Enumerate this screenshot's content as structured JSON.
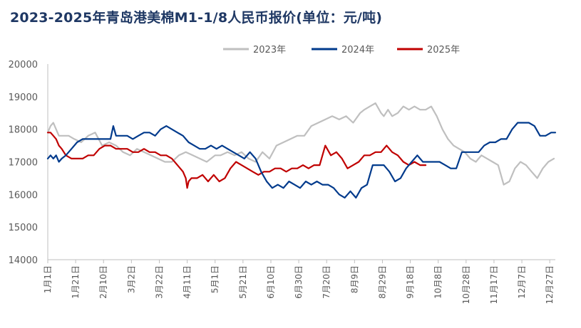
{
  "chart_data": {
    "type": "line",
    "title": "2023-2025年青岛港美棉M1-1/8人民币报价(单位：元/吨)",
    "xlabel": "",
    "ylabel": "",
    "ylim": [
      14000,
      20000
    ],
    "yticks": [
      14000,
      15000,
      16000,
      17000,
      18000,
      19000,
      20000
    ],
    "xlim": [
      1,
      365
    ],
    "xticks": [
      {
        "day": 1,
        "label": "1月1日"
      },
      {
        "day": 21,
        "label": "1月21日"
      },
      {
        "day": 41,
        "label": "2月10日"
      },
      {
        "day": 61,
        "label": "3月2日"
      },
      {
        "day": 81,
        "label": "3月22日"
      },
      {
        "day": 101,
        "label": "4月11日"
      },
      {
        "day": 121,
        "label": "5月1日"
      },
      {
        "day": 141,
        "label": "5月21日"
      },
      {
        "day": 161,
        "label": "6月10日"
      },
      {
        "day": 181,
        "label": "6月30日"
      },
      {
        "day": 201,
        "label": "7月20日"
      },
      {
        "day": 221,
        "label": "8月9日"
      },
      {
        "day": 241,
        "label": "8月29日"
      },
      {
        "day": 261,
        "label": "9月18日"
      },
      {
        "day": 281,
        "label": "10月8日"
      },
      {
        "day": 301,
        "label": "10月28日"
      },
      {
        "day": 321,
        "label": "11月17日"
      },
      {
        "day": 341,
        "label": "12月7日"
      },
      {
        "day": 361,
        "label": "12月27日"
      }
    ],
    "grid": false,
    "legend_position": "top",
    "series": [
      {
        "name": "2023年",
        "color": "#bfbfbf",
        "x": [
          1,
          3,
          5,
          7,
          9,
          12,
          16,
          20,
          25,
          30,
          35,
          40,
          45,
          50,
          55,
          60,
          65,
          70,
          75,
          80,
          85,
          90,
          95,
          100,
          105,
          110,
          115,
          118,
          121,
          125,
          130,
          135,
          140,
          145,
          150,
          155,
          160,
          165,
          170,
          175,
          180,
          185,
          190,
          195,
          200,
          205,
          210,
          215,
          220,
          225,
          228,
          232,
          236,
          240,
          242,
          245,
          248,
          252,
          256,
          260,
          264,
          268,
          272,
          276,
          280,
          284,
          288,
          292,
          296,
          300,
          304,
          308,
          312,
          316,
          320,
          324,
          328,
          332,
          336,
          340,
          344,
          348,
          352,
          356,
          360,
          364
        ],
        "y": [
          17900,
          18100,
          18200,
          18000,
          17800,
          17800,
          17800,
          17700,
          17600,
          17800,
          17900,
          17500,
          17600,
          17500,
          17300,
          17200,
          17400,
          17300,
          17200,
          17100,
          17000,
          17000,
          17200,
          17300,
          17200,
          17100,
          17000,
          17100,
          17200,
          17200,
          17300,
          17200,
          17300,
          17100,
          17000,
          17300,
          17100,
          17500,
          17600,
          17700,
          17800,
          17800,
          18100,
          18200,
          18300,
          18400,
          18300,
          18400,
          18200,
          18500,
          18600,
          18700,
          18800,
          18500,
          18400,
          18600,
          18400,
          18500,
          18700,
          18600,
          18700,
          18600,
          18600,
          18700,
          18400,
          18000,
          17700,
          17500,
          17400,
          17300,
          17100,
          17000,
          17200,
          17100,
          17000,
          16900,
          16300,
          16400,
          16800,
          17000,
          16900,
          16700,
          16500,
          16800,
          17000,
          17100
        ]
      },
      {
        "name": "2024年",
        "color": "#003a8c",
        "x": [
          1,
          3,
          5,
          7,
          9,
          11,
          14,
          18,
          22,
          26,
          30,
          34,
          38,
          42,
          46,
          48,
          50,
          54,
          58,
          62,
          66,
          70,
          74,
          78,
          82,
          86,
          90,
          94,
          98,
          102,
          106,
          110,
          114,
          118,
          122,
          126,
          130,
          134,
          138,
          142,
          146,
          150,
          154,
          158,
          162,
          166,
          170,
          174,
          178,
          182,
          186,
          190,
          194,
          198,
          202,
          206,
          210,
          214,
          218,
          222,
          226,
          230,
          234,
          238,
          242,
          246,
          250,
          254,
          258,
          262,
          266,
          270,
          274,
          278,
          282,
          286,
          290,
          294,
          298,
          302,
          306,
          310,
          314,
          318,
          322,
          326,
          330,
          334,
          338,
          342,
          346,
          350,
          354,
          358,
          362,
          365
        ],
        "y": [
          17100,
          17200,
          17100,
          17200,
          17000,
          17100,
          17200,
          17400,
          17600,
          17700,
          17700,
          17700,
          17700,
          17700,
          17700,
          18100,
          17800,
          17800,
          17800,
          17700,
          17800,
          17900,
          17900,
          17800,
          18000,
          18100,
          18000,
          17900,
          17800,
          17600,
          17500,
          17400,
          17400,
          17500,
          17400,
          17500,
          17400,
          17300,
          17200,
          17100,
          17300,
          17100,
          16700,
          16400,
          16200,
          16300,
          16200,
          16400,
          16300,
          16200,
          16400,
          16300,
          16400,
          16300,
          16300,
          16200,
          16000,
          15900,
          16100,
          15900,
          16200,
          16300,
          16900,
          16900,
          16900,
          16700,
          16400,
          16500,
          16800,
          17000,
          17200,
          17000,
          17000,
          17000,
          17000,
          16900,
          16800,
          16800,
          17300,
          17300,
          17300,
          17300,
          17500,
          17600,
          17600,
          17700,
          17700,
          18000,
          18200,
          18200,
          18200,
          18100,
          17800,
          17800,
          17900,
          17900
        ]
      },
      {
        "name": "2025年",
        "color": "#c00000",
        "x": [
          1,
          3,
          5,
          7,
          9,
          11,
          14,
          18,
          22,
          26,
          30,
          34,
          38,
          42,
          46,
          50,
          54,
          58,
          62,
          66,
          70,
          74,
          78,
          82,
          86,
          90,
          94,
          98,
          100,
          101,
          102,
          104,
          108,
          112,
          116,
          120,
          124,
          128,
          132,
          136,
          140,
          144,
          148,
          152,
          156,
          160,
          164,
          168,
          172,
          176,
          180,
          184,
          188,
          192,
          196,
          200,
          204,
          208,
          212,
          216,
          220,
          224,
          228,
          232,
          236,
          240,
          244,
          248,
          252,
          256,
          260,
          264,
          268,
          272
        ],
        "y": [
          17900,
          17900,
          17800,
          17700,
          17500,
          17400,
          17200,
          17100,
          17100,
          17100,
          17200,
          17200,
          17400,
          17500,
          17500,
          17400,
          17400,
          17400,
          17300,
          17300,
          17400,
          17300,
          17300,
          17200,
          17200,
          17100,
          16900,
          16700,
          16500,
          16200,
          16400,
          16500,
          16500,
          16600,
          16400,
          16600,
          16400,
          16500,
          16800,
          17000,
          16900,
          16800,
          16700,
          16600,
          16700,
          16700,
          16800,
          16800,
          16700,
          16800,
          16800,
          16900,
          16800,
          16900,
          16900,
          17500,
          17200,
          17300,
          17100,
          16800,
          16900,
          17000,
          17200,
          17200,
          17300,
          17300,
          17500,
          17300,
          17200,
          17000,
          16900,
          17000,
          16900,
          16900
        ]
      }
    ]
  }
}
